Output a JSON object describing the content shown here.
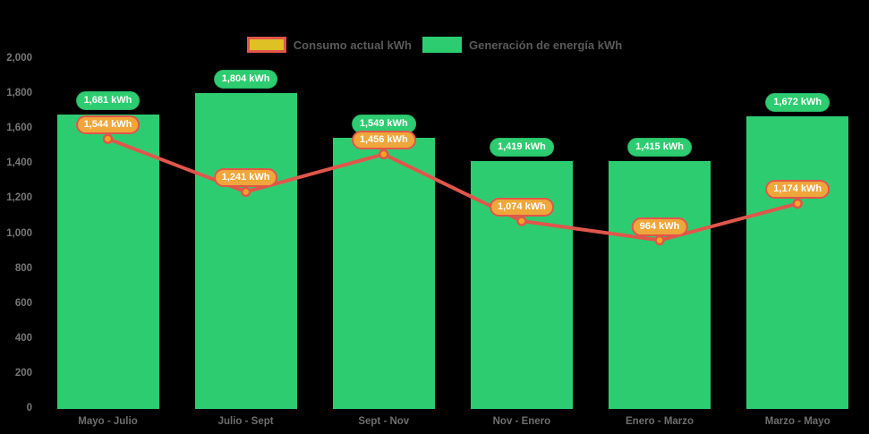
{
  "legend": {
    "items": [
      {
        "label": "Consumo actual kWh",
        "swatch_fill": "#ddc125",
        "swatch_border": "#e0564b"
      },
      {
        "label": "Generación de energía kWh",
        "swatch_fill": "#2ecc71",
        "swatch_border": "#2ecc71"
      }
    ]
  },
  "chart_data": {
    "type": "bar",
    "title": "",
    "categories": [
      "Mayo - Julio",
      "Julio - Sept",
      "Sept - Nov",
      "Nov - Enero",
      "Enero - Marzo",
      "Marzo - Mayo"
    ],
    "series": [
      {
        "name": "Generación de energía kWh",
        "type": "bar",
        "color": "#2ecc71",
        "values": [
          1681,
          1804,
          1549,
          1419,
          1415,
          1672
        ],
        "point_labels": [
          "1,681 kWh",
          "1,804 kWh",
          "1,549 kWh",
          "1,419 kWh",
          "1,415 kWh",
          "1,672 kWh"
        ]
      },
      {
        "name": "Consumo actual kWh",
        "type": "line",
        "color": "#e0564b",
        "marker_color": "#f5a623",
        "values": [
          1544,
          1241,
          1456,
          1074,
          964,
          1174
        ],
        "point_labels": [
          "1,544 kWh",
          "1,241 kWh",
          "1,456 kWh",
          "1,074 kWh",
          "964 kWh",
          "1,174 kWh"
        ]
      }
    ],
    "ylim": [
      0,
      2000
    ],
    "ytick_step": 200,
    "ytick_labels": [
      "0",
      "200",
      "400",
      "600",
      "800",
      "1,000",
      "1,200",
      "1,400",
      "1,600",
      "1,800",
      "2,000"
    ],
    "legend_position": "top-center",
    "grid": false,
    "background": "#000000"
  }
}
